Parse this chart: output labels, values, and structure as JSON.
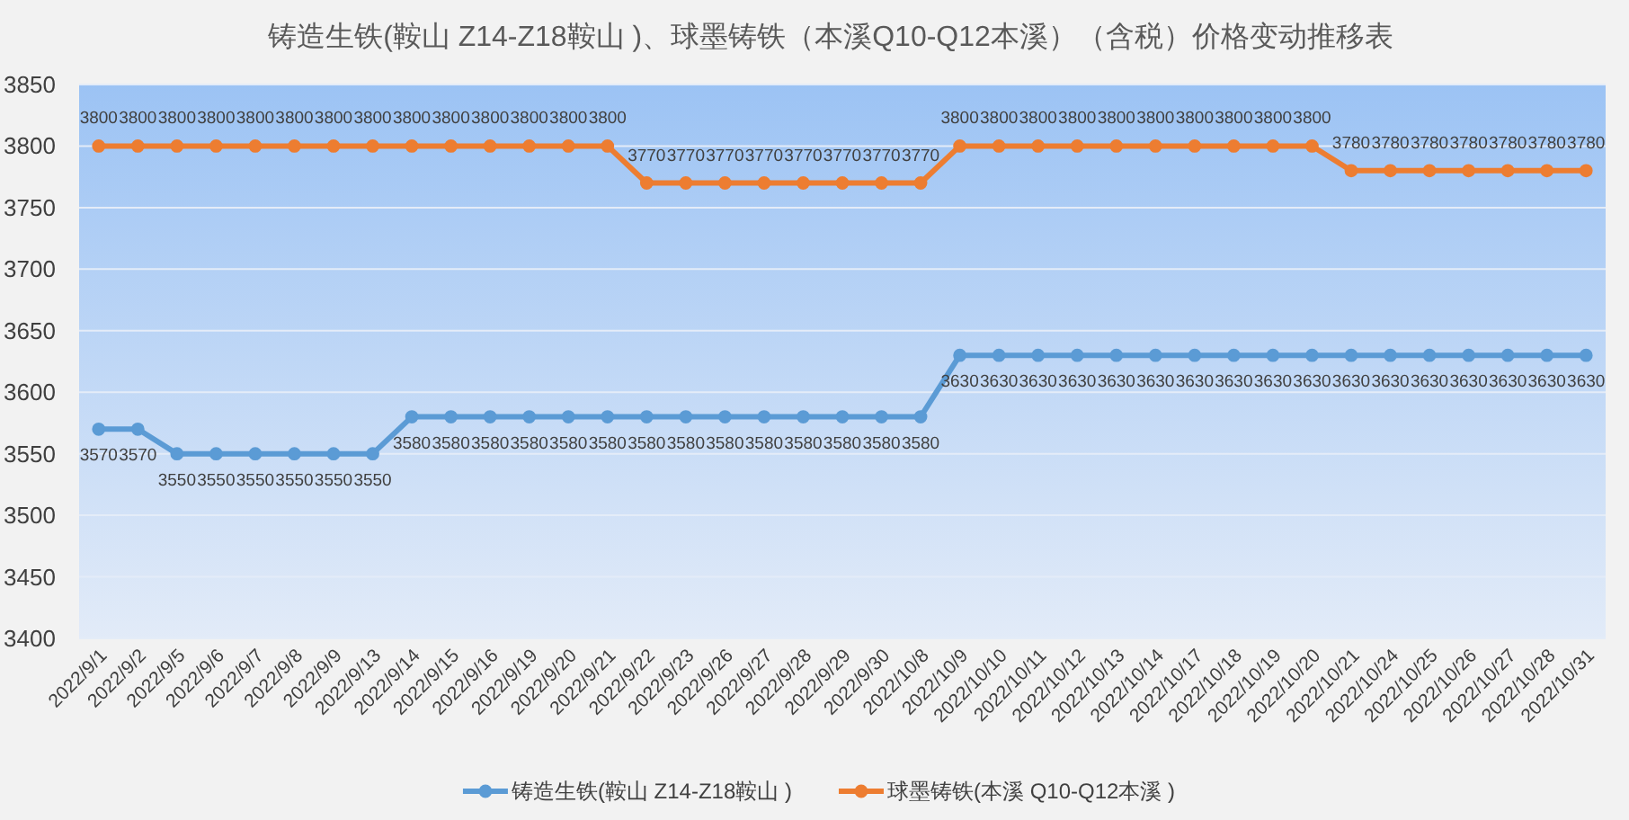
{
  "chart_data": {
    "type": "line",
    "title": "铸造生铁(鞍山 Z14-Z18鞍山 )、球墨铸铁（本溪Q10-Q12本溪）（含税）价格变动推移表",
    "categories": [
      "2022/9/1",
      "2022/9/2",
      "2022/9/5",
      "2022/9/6",
      "2022/9/7",
      "2022/9/8",
      "2022/9/9",
      "2022/9/13",
      "2022/9/14",
      "2022/9/15",
      "2022/9/16",
      "2022/9/19",
      "2022/9/20",
      "2022/9/21",
      "2022/9/22",
      "2022/9/23",
      "2022/9/26",
      "2022/9/27",
      "2022/9/28",
      "2022/9/29",
      "2022/9/30",
      "2022/10/8",
      "2022/10/9",
      "2022/10/10",
      "2022/10/11",
      "2022/10/12",
      "2022/10/13",
      "2022/10/14",
      "2022/10/17",
      "2022/10/18",
      "2022/10/19",
      "2022/10/20",
      "2022/10/21",
      "2022/10/24",
      "2022/10/25",
      "2022/10/26",
      "2022/10/27",
      "2022/10/28",
      "2022/10/31"
    ],
    "series": [
      {
        "name": "铸造生铁(鞍山 Z14-Z18鞍山 )",
        "color": "#5b9bd5",
        "values": [
          3570,
          3570,
          3550,
          3550,
          3550,
          3550,
          3550,
          3550,
          3580,
          3580,
          3580,
          3580,
          3580,
          3580,
          3580,
          3580,
          3580,
          3580,
          3580,
          3580,
          3580,
          3580,
          3630,
          3630,
          3630,
          3630,
          3630,
          3630,
          3630,
          3630,
          3630,
          3630,
          3630,
          3630,
          3630,
          3630,
          3630,
          3630,
          3630
        ]
      },
      {
        "name": "球墨铸铁(本溪 Q10-Q12本溪 )",
        "color": "#ed7d31",
        "values": [
          3800,
          3800,
          3800,
          3800,
          3800,
          3800,
          3800,
          3800,
          3800,
          3800,
          3800,
          3800,
          3800,
          3800,
          3770,
          3770,
          3770,
          3770,
          3770,
          3770,
          3770,
          3770,
          3800,
          3800,
          3800,
          3800,
          3800,
          3800,
          3800,
          3800,
          3800,
          3800,
          3780,
          3780,
          3780,
          3780,
          3780,
          3780,
          3780
        ]
      }
    ],
    "ylim": [
      3400,
      3850
    ],
    "yticks": [
      3400,
      3450,
      3500,
      3550,
      3600,
      3650,
      3700,
      3750,
      3800,
      3850
    ],
    "grid": "y",
    "legend": "bottom",
    "marker": "circle",
    "line_style": "solid",
    "data_labels": true
  }
}
